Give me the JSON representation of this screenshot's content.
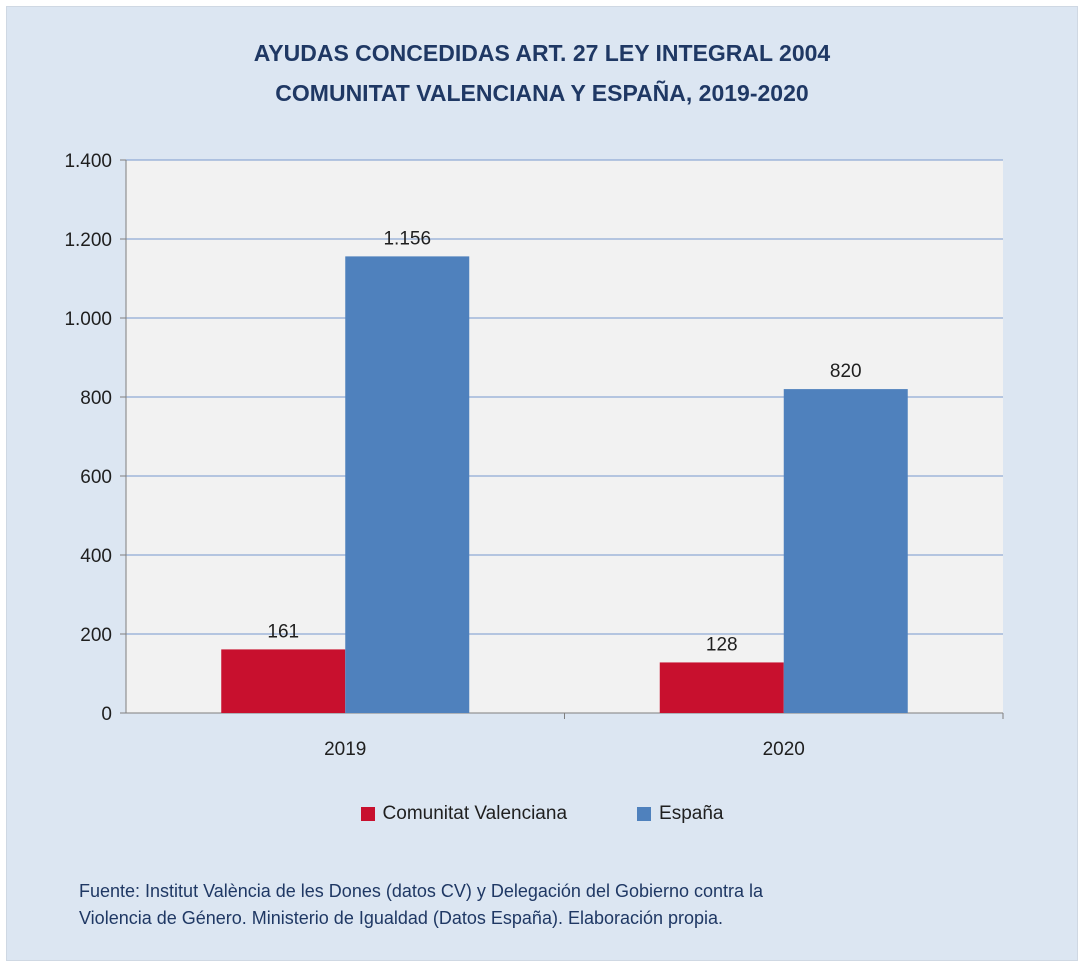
{
  "chart_data": {
    "type": "bar",
    "title_lines": [
      "AYUDAS CONCEDIDAS ART. 27 LEY INTEGRAL 2004",
      "COMUNITAT  VALENCIANA Y ESPAÑA, 2019-2020"
    ],
    "categories": [
      "2019",
      "2020"
    ],
    "series": [
      {
        "name": "Comunitat Valenciana",
        "color": "#c8102e",
        "values": [
          161,
          128
        ],
        "labels": [
          "161",
          "128"
        ]
      },
      {
        "name": "España",
        "color": "#4f81bd",
        "values": [
          1156,
          820
        ],
        "labels": [
          "1.156",
          "820"
        ]
      }
    ],
    "ylim": [
      0,
      1400
    ],
    "yticks": [
      {
        "value": 0,
        "label": "0"
      },
      {
        "value": 200,
        "label": "200"
      },
      {
        "value": 400,
        "label": "400"
      },
      {
        "value": 600,
        "label": "600"
      },
      {
        "value": 800,
        "label": "800"
      },
      {
        "value": 1000,
        "label": "1.000"
      },
      {
        "value": 1200,
        "label": "1.200"
      },
      {
        "value": 1400,
        "label": "1.400"
      }
    ],
    "grid": true,
    "legend_position": "bottom"
  },
  "source_lines": [
    "Fuente: Institut València de les Dones (datos CV) y Delegación del Gobierno contra la",
    "Violencia de Género. Ministerio de Igualdad (Datos España). Elaboración propia."
  ]
}
